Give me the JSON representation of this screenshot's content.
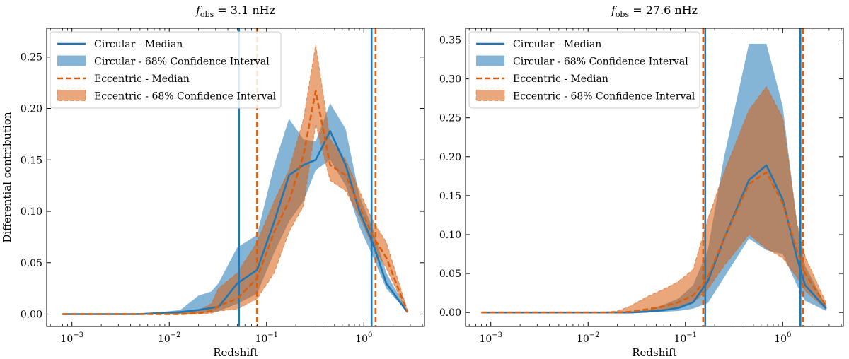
{
  "chart_data": [
    {
      "type": "line",
      "title_prefix": "f",
      "title_sub": "obs",
      "title_value": " = 3.1 nHz",
      "xlabel": "Redshift",
      "ylabel": "Differential contribution",
      "xscale": "log",
      "xlim": [
        0.00055,
        4.2
      ],
      "ylim": [
        -0.012,
        0.278
      ],
      "xticks": [
        {
          "value": 0.001,
          "base": "10",
          "exp": "−3"
        },
        {
          "value": 0.01,
          "base": "10",
          "exp": "−2"
        },
        {
          "value": 0.1,
          "base": "10",
          "exp": "−1"
        },
        {
          "value": 1,
          "base": "10",
          "exp": "0"
        }
      ],
      "yticks": [
        {
          "value": 0.0,
          "label": "0.00"
        },
        {
          "value": 0.05,
          "label": "0.05"
        },
        {
          "value": 0.1,
          "label": "0.10"
        },
        {
          "value": 0.15,
          "label": "0.15"
        },
        {
          "value": 0.2,
          "label": "0.20"
        },
        {
          "value": 0.25,
          "label": "0.25"
        }
      ],
      "legend": {
        "position": "top-left",
        "entries": [
          "Circular - Median",
          "Circular - 68% Confidence Interval",
          "Eccentric - Median",
          "Eccentric - 68% Confidence Interval"
        ]
      },
      "x": [
        0.0008,
        0.0013,
        0.002,
        0.0032,
        0.005,
        0.008,
        0.013,
        0.02,
        0.027,
        0.032,
        0.05,
        0.08,
        0.12,
        0.17,
        0.24,
        0.32,
        0.45,
        0.65,
        0.9,
        1.25,
        1.7,
        2.8
      ],
      "series": [
        {
          "name": "Circular - Median",
          "kind": "line",
          "color": "#1f77b4",
          "dash": false,
          "values": [
            0,
            0,
            0,
            0,
            0,
            0.001,
            0.002,
            0.004,
            0.006,
            0.007,
            0.03,
            0.043,
            0.09,
            0.135,
            0.145,
            0.15,
            0.178,
            0.145,
            0.1,
            0.068,
            0.03,
            0.002
          ]
        },
        {
          "name": "Circular - 68% Confidence Interval",
          "kind": "band",
          "color": "#1f77b4",
          "lower": [
            0,
            0,
            0,
            0,
            0,
            0,
            0,
            0.001,
            0.002,
            0.003,
            0.01,
            0.02,
            0.06,
            0.09,
            0.11,
            0.14,
            0.15,
            0.125,
            0.085,
            0.055,
            0.025,
            0.002
          ],
          "upper": [
            0,
            0,
            0,
            0,
            0.001,
            0.002,
            0.004,
            0.018,
            0.022,
            0.03,
            0.065,
            0.077,
            0.145,
            0.19,
            0.17,
            0.168,
            0.205,
            0.18,
            0.115,
            0.082,
            0.04,
            0.003
          ]
        },
        {
          "name": "Eccentric - Median",
          "kind": "line",
          "color": "#d95f0e",
          "dash": true,
          "values": [
            0,
            0,
            0,
            0,
            0,
            0,
            0,
            0.001,
            0.003,
            0.008,
            0.015,
            0.035,
            0.08,
            0.11,
            0.155,
            0.217,
            0.145,
            0.135,
            0.105,
            0.075,
            0.055,
            0.002
          ]
        },
        {
          "name": "Eccentric - 68% Confidence Interval",
          "kind": "band",
          "color": "#d95f0e",
          "lower": [
            0,
            0,
            0,
            0,
            0,
            0,
            0,
            0,
            0.001,
            0.003,
            0.005,
            0.015,
            0.04,
            0.08,
            0.105,
            0.185,
            0.13,
            0.12,
            0.095,
            0.065,
            0.045,
            0.001
          ],
          "upper": [
            0,
            0,
            0,
            0,
            0,
            0,
            0.001,
            0.004,
            0.01,
            0.025,
            0.04,
            0.07,
            0.11,
            0.14,
            0.19,
            0.262,
            0.17,
            0.15,
            0.12,
            0.09,
            0.07,
            0.004
          ]
        }
      ],
      "vlines": [
        {
          "series": "Circular - Median",
          "color": "#1f77b4",
          "dash": false,
          "values": [
            0.052,
            1.2
          ]
        },
        {
          "series": "Eccentric - Median",
          "color": "#d95f0e",
          "dash": true,
          "values": [
            0.08,
            1.32
          ]
        }
      ]
    },
    {
      "type": "line",
      "title_prefix": "f",
      "title_sub": "obs",
      "title_value": " = 27.6 nHz",
      "xlabel": "Redshift",
      "ylabel": "",
      "xscale": "log",
      "xlim": [
        0.00055,
        4.2
      ],
      "ylim": [
        -0.018,
        0.365
      ],
      "xticks": [
        {
          "value": 0.001,
          "base": "10",
          "exp": "−3"
        },
        {
          "value": 0.01,
          "base": "10",
          "exp": "−2"
        },
        {
          "value": 0.1,
          "base": "10",
          "exp": "−1"
        },
        {
          "value": 1,
          "base": "10",
          "exp": "0"
        }
      ],
      "yticks": [
        {
          "value": 0.0,
          "label": "0.00"
        },
        {
          "value": 0.05,
          "label": "0.05"
        },
        {
          "value": 0.1,
          "label": "0.10"
        },
        {
          "value": 0.15,
          "label": "0.15"
        },
        {
          "value": 0.2,
          "label": "0.20"
        },
        {
          "value": 0.25,
          "label": "0.25"
        },
        {
          "value": 0.3,
          "label": "0.30"
        },
        {
          "value": 0.35,
          "label": "0.35"
        }
      ],
      "legend": {
        "position": "top-left",
        "entries": [
          "Circular - Median",
          "Circular - 68% Confidence Interval",
          "Eccentric - Median",
          "Eccentric - 68% Confidence Interval"
        ]
      },
      "x": [
        0.0008,
        0.0013,
        0.002,
        0.0032,
        0.005,
        0.008,
        0.013,
        0.02,
        0.027,
        0.04,
        0.06,
        0.085,
        0.12,
        0.17,
        0.25,
        0.45,
        0.68,
        1.0,
        1.4,
        1.7,
        2.8
      ],
      "series": [
        {
          "name": "Circular - Median",
          "kind": "line",
          "color": "#1f77b4",
          "dash": false,
          "values": [
            0,
            0,
            0,
            0,
            0,
            0,
            0,
            0,
            0,
            0.001,
            0.003,
            0.006,
            0.013,
            0.04,
            0.095,
            0.17,
            0.189,
            0.145,
            0.07,
            0.035,
            0.005
          ]
        },
        {
          "name": "Circular - 68% Confidence Interval",
          "kind": "band",
          "color": "#1f77b4",
          "lower": [
            0,
            0,
            0,
            0,
            0,
            0,
            0,
            0,
            0,
            0,
            0.001,
            0.002,
            0.005,
            0.012,
            0.045,
            0.095,
            0.08,
            0.075,
            0.035,
            0.015,
            0.002
          ],
          "upper": [
            0,
            0,
            0,
            0,
            0,
            0,
            0,
            0,
            0.001,
            0.003,
            0.01,
            0.018,
            0.035,
            0.08,
            0.2,
            0.345,
            0.345,
            0.265,
            0.115,
            0.06,
            0.008
          ]
        },
        {
          "name": "Eccentric - Median",
          "kind": "line",
          "color": "#d95f0e",
          "dash": true,
          "values": [
            0,
            0,
            0,
            0,
            0,
            0,
            0,
            0,
            0.001,
            0.004,
            0.008,
            0.013,
            0.022,
            0.045,
            0.095,
            0.165,
            0.18,
            0.14,
            0.08,
            0.05,
            0.008
          ]
        },
        {
          "name": "Eccentric - 68% Confidence Interval",
          "kind": "band",
          "color": "#d95f0e",
          "lower": [
            0,
            0,
            0,
            0,
            0,
            0,
            0,
            0,
            0,
            0.001,
            0.003,
            0.006,
            0.012,
            0.03,
            0.06,
            0.1,
            0.082,
            0.07,
            0.045,
            0.028,
            0.004
          ],
          "upper": [
            0,
            0,
            0,
            0,
            0,
            0,
            0,
            0.002,
            0.008,
            0.02,
            0.03,
            0.04,
            0.055,
            0.12,
            0.18,
            0.26,
            0.29,
            0.25,
            0.115,
            0.072,
            0.012
          ]
        }
      ],
      "vlines": [
        {
          "series": "Circular - Median",
          "color": "#1f77b4",
          "dash": false,
          "values": [
            0.16,
            1.52
          ]
        },
        {
          "series": "Eccentric - Median",
          "color": "#d95f0e",
          "dash": true,
          "values": [
            0.152,
            1.62
          ]
        }
      ]
    }
  ]
}
